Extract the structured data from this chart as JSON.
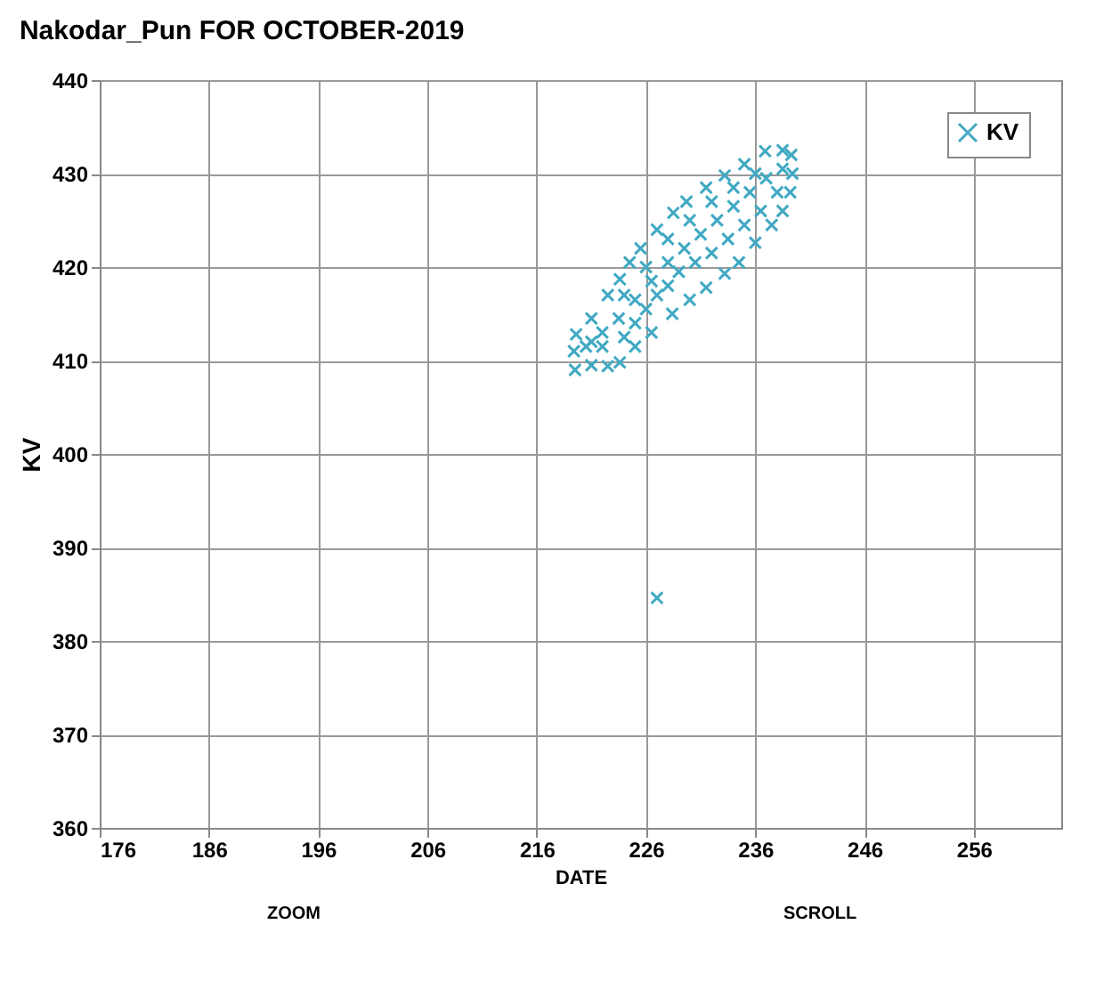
{
  "chart_data": {
    "type": "scatter",
    "title": "Nakodar_Pun FOR OCTOBER-2019",
    "xlabel": "DATE",
    "ylabel": "KV",
    "annotations": [
      "ZOOM",
      "SCROLL"
    ],
    "xlim": [
      176,
      264
    ],
    "xticks": [
      176,
      186,
      196,
      206,
      216,
      226,
      236,
      246,
      256
    ],
    "ylim": [
      360,
      440
    ],
    "yticks": [
      360,
      370,
      380,
      390,
      400,
      410,
      420,
      430,
      440
    ],
    "grid": true,
    "legend": "top right",
    "marker": "cross",
    "series": [
      {
        "name": "KV",
        "color": "#41a9c3",
        "x": [
          219.4,
          219.6,
          221,
          222.5,
          223.6,
          224.5,
          225.5,
          227,
          228.5,
          229.7,
          231.5,
          233.2,
          235,
          236.9,
          238.5,
          239.3,
          219.5,
          221,
          222.5,
          223.6,
          225,
          226.5,
          228.4,
          230,
          231.5,
          233.2,
          234.5,
          236,
          237.5,
          238.5,
          239.2,
          239.4,
          220.5,
          222,
          223.5,
          225,
          226.5,
          228,
          229.5,
          231,
          232.5,
          234,
          235.5,
          237,
          238.5,
          222,
          224,
          225,
          226,
          227,
          228,
          229,
          230.5,
          232,
          233.5,
          235,
          236.5,
          238,
          221,
          224,
          226,
          228,
          230,
          232,
          234,
          236,
          227
        ],
        "values": [
          411,
          412.8,
          414.5,
          417,
          418.7,
          420.5,
          422,
          424,
          425.8,
          427,
          428.5,
          429.8,
          431,
          432.4,
          432.5,
          432,
          409,
          409.5,
          409.4,
          409.8,
          411.5,
          413,
          415,
          416.5,
          417.8,
          419.3,
          420.5,
          422.6,
          424.5,
          426,
          428,
          430,
          411.5,
          413,
          414.5,
          416.5,
          418.5,
          420.5,
          422,
          423.5,
          425,
          426.5,
          428,
          429.5,
          430.5,
          411.5,
          412.5,
          414,
          415.5,
          417,
          418,
          419.5,
          420.5,
          421.5,
          423,
          424.5,
          426,
          428,
          412,
          417,
          420,
          423,
          425,
          427,
          428.5,
          430,
          384.6
        ]
      }
    ]
  }
}
